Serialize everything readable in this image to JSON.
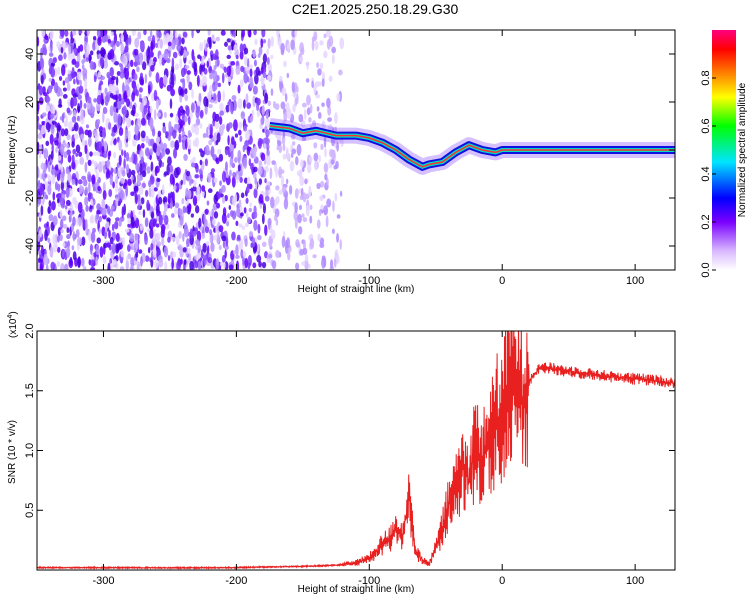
{
  "title": "C2E1.2025.250.18.29.G30",
  "chart_data": [
    {
      "type": "heatmap",
      "name": "spectrogram",
      "xlabel": "Height of straight line (km)",
      "ylabel": "Frequency (Hz)",
      "xlim": [
        -350,
        130
      ],
      "ylim": [
        -50,
        50
      ],
      "x_ticks": [
        -300,
        -200,
        -100,
        0,
        100
      ],
      "y_ticks": [
        -40,
        -20,
        0,
        20,
        40
      ],
      "colorbar": {
        "label": "Normalized spectral amplitude",
        "range": [
          0,
          1
        ],
        "ticks": [
          0.0,
          0.2,
          0.4,
          0.6,
          0.8
        ],
        "colormap": [
          "#ffffff",
          "#7a00ff",
          "#0000ff",
          "#00ffff",
          "#00ff00",
          "#ffff00",
          "#ff8000",
          "#ff0000",
          "#ff0080"
        ]
      },
      "dominant_frequency_track": {
        "x": [
          -175,
          -160,
          -150,
          -140,
          -125,
          -110,
          -100,
          -90,
          -80,
          -70,
          -60,
          -55,
          -45,
          -35,
          -25,
          -15,
          -5,
          0,
          130
        ],
        "y": [
          10,
          9,
          7,
          8,
          6,
          6,
          5,
          3,
          0,
          -4,
          -7,
          -6,
          -5,
          -1,
          2,
          0,
          -1,
          0,
          0
        ]
      }
    },
    {
      "type": "line",
      "name": "snr",
      "xlabel": "Height of straight line (km)",
      "ylabel": "SNR (10 * v/v)",
      "y_multiplier": "(x10^4)",
      "y_multiplier_base": "(x10",
      "y_multiplier_exp": "4",
      "y_multiplier_close": ")",
      "xlim": [
        -350,
        130
      ],
      "ylim": [
        0,
        20000
      ],
      "x_ticks": [
        -300,
        -200,
        -100,
        0,
        100
      ],
      "y_ticks": [
        0.5,
        1.0,
        1.5,
        2.0
      ],
      "color": "#e82020",
      "series": [
        {
          "x": [
            -350,
            -300,
            -250,
            -200,
            -175,
            -150,
            -125,
            -110,
            -100,
            -95,
            -90,
            -85,
            -80,
            -75,
            -70,
            -65,
            -60,
            -55,
            -50,
            -45,
            -40,
            -35,
            -30,
            -25,
            -20,
            -15,
            -10,
            -5,
            0,
            5,
            10,
            15,
            20,
            25,
            30,
            40,
            60,
            80,
            100,
            120,
            130
          ],
          "y": [
            200,
            200,
            180,
            200,
            260,
            300,
            400,
            600,
            1000,
            1500,
            2200,
            2500,
            3500,
            2800,
            6000,
            1500,
            800,
            500,
            1800,
            3500,
            5500,
            7000,
            8500,
            7500,
            10500,
            9000,
            11000,
            12500,
            13000,
            15500,
            16000,
            14500,
            15800,
            16500,
            17000,
            16800,
            16500,
            16200,
            16000,
            15800,
            15600
          ]
        }
      ]
    }
  ]
}
